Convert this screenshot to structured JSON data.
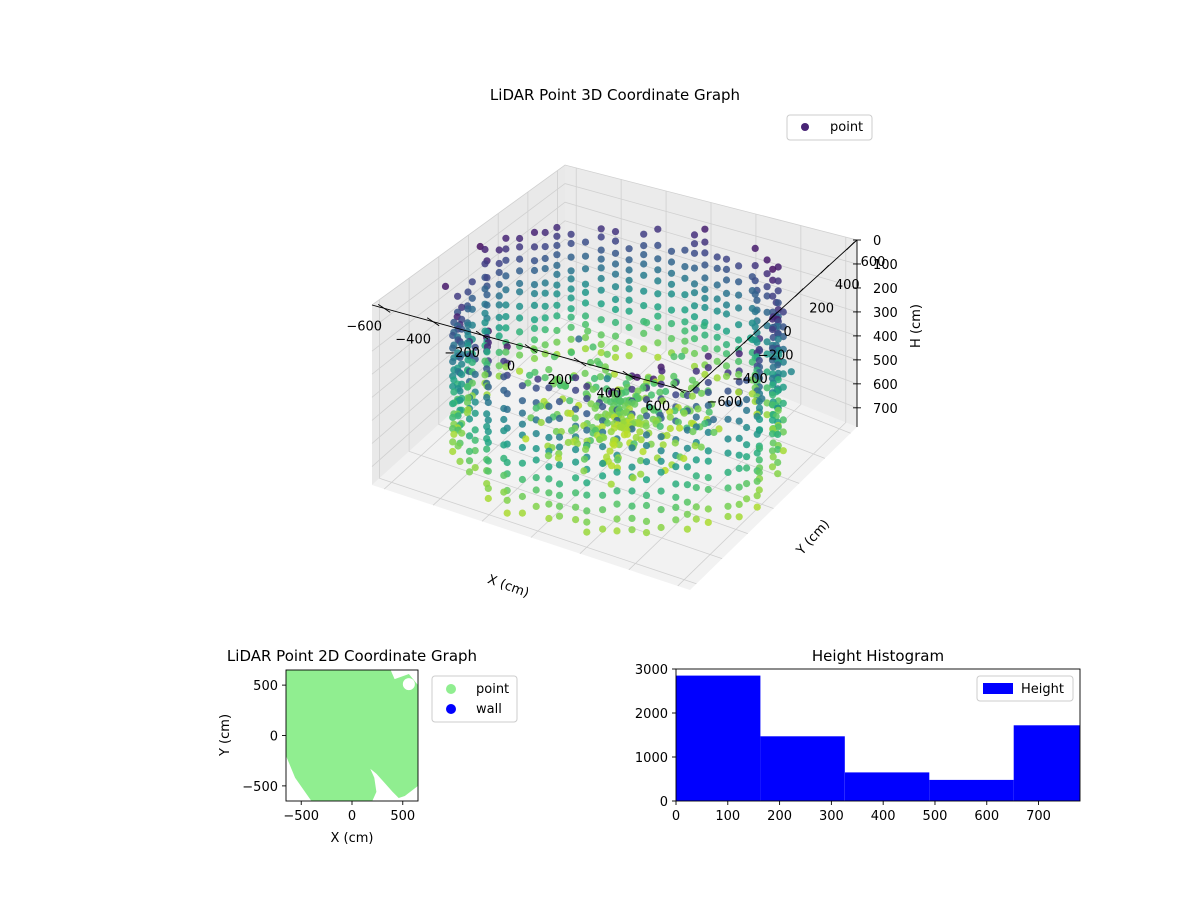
{
  "chart_data": [
    {
      "type": "scatter",
      "projection": "3d",
      "title": "LiDAR Point 3D Coordinate Graph",
      "xlabel": "X (cm)",
      "ylabel": "Y (cm)",
      "zlabel": "H (cm)",
      "xlim": [
        -650,
        650
      ],
      "ylim": [
        -650,
        650
      ],
      "zlim": [
        780,
        0
      ],
      "x_ticks": [
        -600,
        -400,
        -200,
        0,
        200,
        400,
        600
      ],
      "y_ticks": [
        -600,
        -400,
        -200,
        0,
        200,
        400,
        600
      ],
      "z_ticks": [
        0,
        100,
        200,
        300,
        400,
        500,
        600,
        700
      ],
      "z_inverted": true,
      "colormap": "viridis (colored by height)",
      "legend": {
        "position": "upper-right",
        "entries": [
          {
            "label": "point",
            "color": "#482475"
          }
        ]
      },
      "series": [
        {
          "name": "point",
          "description_of_shape": "points lie on a ring of radius about 600 cm, concentrated in an inner cluster near the center",
          "x": [
            -560,
            -420,
            -230,
            0,
            230,
            420,
            560,
            600,
            560,
            420,
            230,
            0,
            -230,
            -420,
            -560,
            -600,
            -300,
            -150,
            0,
            150,
            300,
            150,
            0,
            -150,
            400,
            420,
            380
          ],
          "y": [
            300,
            450,
            560,
            600,
            560,
            450,
            300,
            0,
            -300,
            -450,
            -560,
            -600,
            -560,
            -450,
            -300,
            0,
            100,
            250,
            300,
            250,
            100,
            -50,
            -100,
            -50,
            -400,
            -500,
            -550
          ],
          "h": [
            700,
            650,
            600,
            550,
            500,
            450,
            400,
            350,
            300,
            250,
            200,
            150,
            100,
            80,
            60,
            40,
            650,
            700,
            720,
            680,
            600,
            500,
            400,
            300,
            100,
            80,
            60
          ]
        }
      ]
    },
    {
      "type": "scatter",
      "title": "LiDAR Point 2D Coordinate Graph",
      "xlabel": "X (cm)",
      "ylabel": "Y (cm)",
      "xlim": [
        -650,
        650
      ],
      "ylim": [
        -650,
        650
      ],
      "x_ticks": [
        -500,
        0,
        500
      ],
      "y_ticks": [
        -500,
        0,
        500
      ],
      "legend": {
        "position": "outside-right",
        "entries": [
          {
            "label": "point",
            "color": "#90ee90"
          },
          {
            "label": "wall",
            "color": "#0000ff"
          }
        ]
      },
      "series": [
        {
          "name": "point",
          "color": "#90ee90",
          "description_of_shape": "filled region covering most of the plot area, with a notch on the lower right"
        },
        {
          "name": "wall",
          "color": "#0000ff",
          "values": []
        }
      ]
    },
    {
      "type": "bar",
      "subtype": "histogram",
      "title": "Height Histogram",
      "xlim": [
        0,
        780
      ],
      "ylim": [
        0,
        3000
      ],
      "x_ticks": [
        0,
        100,
        200,
        300,
        400,
        500,
        600,
        700
      ],
      "y_ticks": [
        0,
        1000,
        2000,
        3000
      ],
      "bin_edges": [
        0,
        163,
        326,
        489,
        652,
        780
      ],
      "values": [
        2850,
        1470,
        650,
        480,
        1720
      ],
      "color": "#0000ff",
      "legend": {
        "position": "upper-right",
        "entries": [
          {
            "label": "Height",
            "color": "#0000ff"
          }
        ]
      }
    }
  ]
}
